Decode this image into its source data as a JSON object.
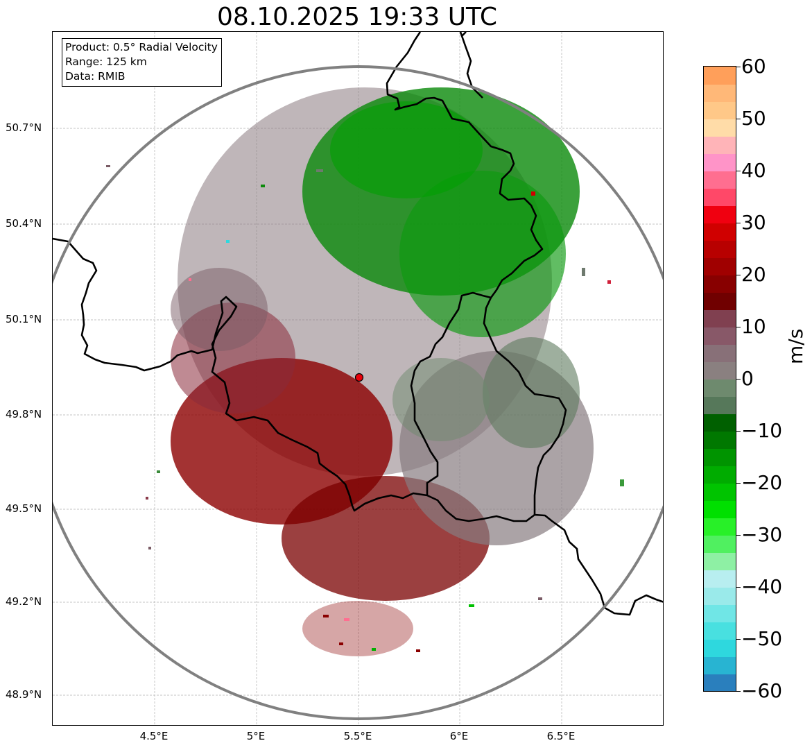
{
  "title": "08.10.2025 19:33 UTC",
  "info_box": {
    "product": "Product: 0.5° Radial Velocity",
    "range": "Range: 125 km",
    "data": "Data: RMIB"
  },
  "axes": {
    "lat_labels": [
      "50.7°N",
      "50.4°N",
      "50.1°N",
      "49.8°N",
      "49.5°N",
      "49.2°N",
      "48.9°N"
    ],
    "lon_labels": [
      "4.5°E",
      "5°E",
      "5.5°E",
      "6°E",
      "6.5°E"
    ]
  },
  "radar_site": {
    "lat": 49.91,
    "lon": 5.51,
    "color": "#e8000b"
  },
  "colorbar": {
    "unit": "m/s",
    "min": -60,
    "max": 60,
    "tick_labels": [
      "60",
      "50",
      "40",
      "30",
      "20",
      "10",
      "0",
      "−10",
      "−20",
      "−30",
      "−40",
      "−50",
      "−60"
    ],
    "colors": [
      "#2a7fbd",
      "#28b4d2",
      "#2ed8de",
      "#48e0e0",
      "#70e6e6",
      "#9aeaea",
      "#b8eef0",
      "#8ef0a4",
      "#50f060",
      "#28f028",
      "#00e000",
      "#00c400",
      "#00ac00",
      "#009400",
      "#007800",
      "#006000",
      "#56785a",
      "#6e8a6e",
      "#8a8080",
      "#887078",
      "#885868",
      "#804050",
      "#700000",
      "#880000",
      "#a00000",
      "#b80000",
      "#d00000",
      "#f00010",
      "#ff4868",
      "#ff6e90",
      "#ff94c8",
      "#ffb4b8",
      "#ffdca8",
      "#ffc888",
      "#ffb878",
      "#ff9f5a"
    ]
  },
  "colors": {
    "border": "#000000",
    "range_ring": "#808080",
    "grid": "#b0b0b0"
  }
}
